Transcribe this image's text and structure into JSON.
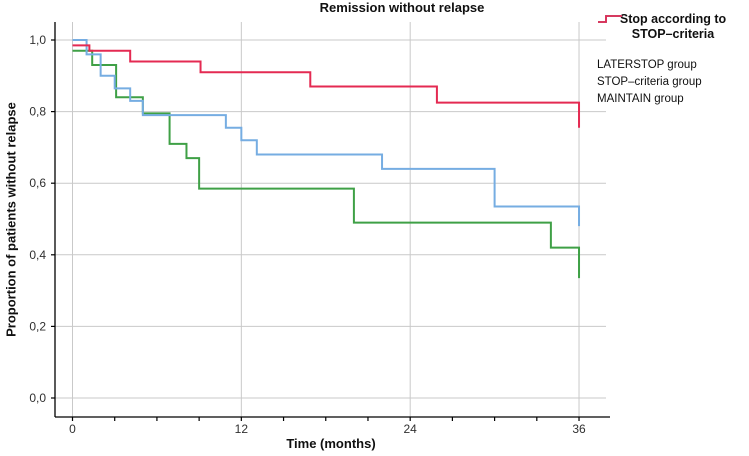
{
  "chart_data": {
    "type": "line",
    "subtype": "kaplan-meier-step-curves",
    "title": "Remission without relapse",
    "xlabel": "Time (months)",
    "ylabel": "Proportion of patients without relapse",
    "xlim": [
      0,
      36
    ],
    "ylim": [
      0.0,
      1.0
    ],
    "grid": true,
    "x_ticks": [
      0,
      12,
      24,
      36
    ],
    "x_tick_labels": [
      "0",
      "12",
      "24",
      "36"
    ],
    "x_minor_tick_step_months": 3,
    "y_ticks": [
      0.0,
      0.2,
      0.4,
      0.6,
      0.8,
      1.0
    ],
    "y_tick_labels": [
      "0,0",
      "0,2",
      "0,4",
      "0,6",
      "0,8",
      "1,0"
    ],
    "legend_position": "right",
    "series": [
      {
        "name": "LATERSTOP group",
        "color": "#3fa046",
        "steps": [
          [
            0,
            0.97
          ],
          [
            1.4,
            0.93
          ],
          [
            3.1,
            0.84
          ],
          [
            5,
            0.795
          ],
          [
            6.9,
            0.71
          ],
          [
            8.1,
            0.67
          ],
          [
            9,
            0.585
          ],
          [
            20,
            0.49
          ],
          [
            34,
            0.42
          ],
          [
            36,
            0.335
          ]
        ]
      },
      {
        "name": "STOP–criteria group",
        "color": "#76ade2",
        "steps": [
          [
            0,
            1.0
          ],
          [
            1,
            0.96
          ],
          [
            2,
            0.9
          ],
          [
            3,
            0.865
          ],
          [
            4.1,
            0.83
          ],
          [
            5,
            0.79
          ],
          [
            10.9,
            0.755
          ],
          [
            12,
            0.72
          ],
          [
            13.1,
            0.68
          ],
          [
            22,
            0.64
          ],
          [
            30,
            0.535
          ],
          [
            36,
            0.48
          ]
        ]
      },
      {
        "name": "MAINTAIN group",
        "color": "#e42a52",
        "steps": [
          [
            0,
            0.985
          ],
          [
            1.2,
            0.97
          ],
          [
            4.1,
            0.94
          ],
          [
            9.1,
            0.91
          ],
          [
            16.9,
            0.87
          ],
          [
            25.9,
            0.825
          ],
          [
            36,
            0.755
          ]
        ]
      }
    ]
  },
  "legend": {
    "title_line1": "Stop according to",
    "title_line2": "STOP–criteria"
  },
  "colors": {
    "grid": "#c9c9c9",
    "axis": "#000000",
    "tick_text": "#303030"
  }
}
